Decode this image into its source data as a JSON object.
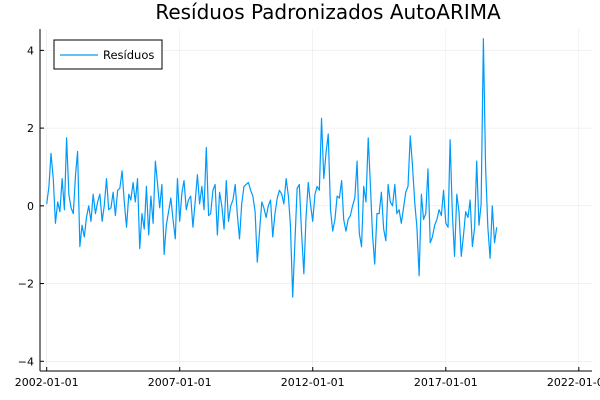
{
  "chart_data": {
    "type": "line",
    "title": "Resíduos Padronizados AutoARIMA",
    "xlabel": "",
    "ylabel": "",
    "x_start": "2002-01",
    "x_frequency": "monthly",
    "xlim": [
      "2001-10-01",
      "2022-07-01"
    ],
    "ylim": [
      -4.25,
      4.55
    ],
    "x_ticks": [
      "2002-01-01",
      "2007-01-01",
      "2012-01-01",
      "2017-01-01",
      "2022-01-01"
    ],
    "y_ticks": [
      -4,
      -2,
      0,
      2,
      4
    ],
    "grid": true,
    "legend_position": "top-left",
    "colors": {
      "series": "#009AFA"
    },
    "series": [
      {
        "name": "Resíduos",
        "values": [
          0.05,
          0.5,
          1.35,
          0.7,
          -0.45,
          0.1,
          -0.15,
          0.7,
          -0.1,
          1.75,
          0.3,
          -0.05,
          -0.2,
          0.8,
          1.4,
          -1.05,
          -0.5,
          -0.8,
          -0.3,
          0.0,
          -0.4,
          0.3,
          -0.2,
          0.1,
          0.3,
          -0.4,
          0.0,
          0.7,
          -0.1,
          -0.05,
          0.35,
          -0.25,
          0.4,
          0.45,
          0.9,
          0.1,
          -0.55,
          0.3,
          0.15,
          0.6,
          0.1,
          0.7,
          -1.1,
          -0.2,
          -0.6,
          0.5,
          -0.75,
          0.25,
          -0.45,
          1.15,
          0.6,
          -0.05,
          0.55,
          -1.25,
          -0.5,
          -0.15,
          0.2,
          -0.35,
          -0.85,
          0.7,
          -0.4,
          0.35,
          0.65,
          -0.1,
          0.15,
          0.25,
          -0.55,
          0.1,
          0.8,
          0.05,
          0.5,
          -0.1,
          1.5,
          -0.25,
          -0.2,
          0.4,
          0.55,
          -0.75,
          0.35,
          0.0,
          -0.6,
          0.65,
          -0.4,
          0.0,
          0.15,
          0.55,
          -0.2,
          -0.85,
          0.05,
          0.5,
          0.55,
          0.6,
          0.4,
          0.25,
          -0.15,
          -1.45,
          -0.65,
          0.1,
          -0.05,
          -0.3,
          0.0,
          0.15,
          -0.8,
          -0.2,
          0.2,
          0.4,
          0.3,
          0.05,
          0.7,
          0.25,
          -0.5,
          -2.35,
          -0.95,
          0.45,
          0.55,
          -0.7,
          -1.75,
          -0.3,
          0.6,
          0.05,
          -0.4,
          0.3,
          0.5,
          0.4,
          2.25,
          0.7,
          1.35,
          1.85,
          -0.1,
          -0.65,
          -0.35,
          0.25,
          0.2,
          0.65,
          -0.35,
          -0.65,
          -0.35,
          -0.25,
          0.0,
          0.2,
          1.15,
          -0.7,
          -1.05,
          0.5,
          0.1,
          1.75,
          0.6,
          -0.75,
          -1.5,
          -0.2,
          -0.2,
          0.35,
          -0.6,
          -0.9,
          0.55,
          0.1,
          0.0,
          0.55,
          -0.2,
          -0.1,
          -0.45,
          -0.05,
          0.35,
          0.5,
          1.8,
          1.05,
          0.1,
          -0.55,
          -1.8,
          0.3,
          -0.35,
          -0.2,
          0.95,
          -0.95,
          -0.8,
          -0.5,
          -0.35,
          -0.1,
          -0.25,
          0.4,
          -0.45,
          -0.55,
          1.7,
          -0.2,
          -1.3,
          0.3,
          -0.15,
          -1.3,
          -0.75,
          -0.15,
          -0.3,
          0.15,
          -1.05,
          -0.55,
          1.15,
          -0.5,
          0.05,
          4.3,
          1.0,
          -0.55,
          -1.35,
          0.0,
          -0.95,
          -0.55
        ]
      }
    ]
  }
}
